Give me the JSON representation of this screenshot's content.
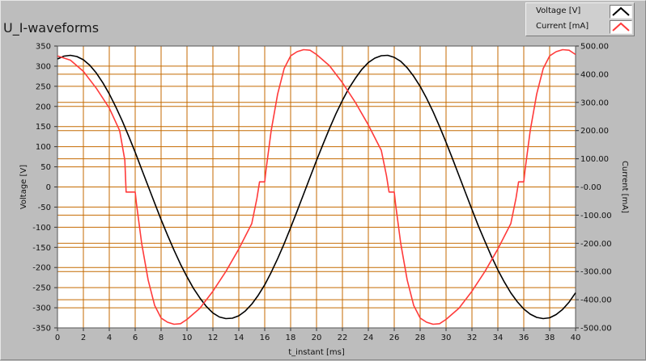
{
  "chart_data": {
    "type": "line",
    "title": "U_I-waveforms",
    "xlabel": "t_instant [ms]",
    "ylabel_left": "Voltage [V]",
    "ylabel_right": "Current [mA]",
    "xlim": [
      0,
      40
    ],
    "ylim_left": [
      -350,
      350
    ],
    "ylim_right": [
      -500,
      500
    ],
    "grid": true,
    "legend_position": "top-right",
    "x_ticks": [
      "0",
      "2",
      "4",
      "6",
      "8",
      "10",
      "12",
      "14",
      "16",
      "18",
      "20",
      "22",
      "24",
      "26",
      "28",
      "30",
      "32",
      "34",
      "36",
      "38",
      "40"
    ],
    "y_left_ticks": [
      "350",
      "300",
      "250",
      "200",
      "150",
      "100",
      "50",
      "0",
      "-50",
      "-100",
      "-150",
      "-200",
      "-250",
      "-300",
      "-350"
    ],
    "y_right_ticks": [
      "500.00",
      "400.00",
      "300.00",
      "200.00",
      "100.00",
      "-0.00",
      "-100.00",
      "-200.00",
      "-300.00",
      "-400.00",
      "-500.00"
    ],
    "series": [
      {
        "name": "Voltage [V]",
        "axis": "left",
        "color": "#000000",
        "points": [
          [
            0,
            318
          ],
          [
            0.5,
            325
          ],
          [
            1,
            327
          ],
          [
            1.5,
            324
          ],
          [
            2,
            316
          ],
          [
            2.5,
            302
          ],
          [
            3,
            283
          ],
          [
            3.5,
            259
          ],
          [
            4,
            231
          ],
          [
            4.5,
            199
          ],
          [
            5,
            164
          ],
          [
            5.5,
            126
          ],
          [
            6,
            86
          ],
          [
            6.5,
            44
          ],
          [
            7,
            2
          ],
          [
            7.5,
            -40
          ],
          [
            8,
            -81
          ],
          [
            8.5,
            -120
          ],
          [
            9,
            -157
          ],
          [
            9.5,
            -192
          ],
          [
            10,
            -223
          ],
          [
            10.5,
            -252
          ],
          [
            11,
            -276
          ],
          [
            11.5,
            -297
          ],
          [
            12,
            -313
          ],
          [
            12.5,
            -323
          ],
          [
            13,
            -327
          ],
          [
            13.5,
            -326
          ],
          [
            14,
            -320
          ],
          [
            14.5,
            -308
          ],
          [
            15,
            -291
          ],
          [
            15.5,
            -269
          ],
          [
            16,
            -243
          ],
          [
            16.5,
            -212
          ],
          [
            17,
            -178
          ],
          [
            17.5,
            -141
          ],
          [
            18,
            -101
          ],
          [
            18.5,
            -60
          ],
          [
            19,
            -18
          ],
          [
            19.5,
            24
          ],
          [
            20,
            66
          ],
          [
            20.5,
            106
          ],
          [
            21,
            145
          ],
          [
            21.5,
            182
          ],
          [
            22,
            215
          ],
          [
            22.5,
            245
          ],
          [
            23,
            270
          ],
          [
            23.5,
            292
          ],
          [
            24,
            309
          ],
          [
            24.5,
            320
          ],
          [
            25,
            326
          ],
          [
            25.5,
            327
          ],
          [
            26,
            322
          ],
          [
            26.5,
            312
          ],
          [
            27,
            296
          ],
          [
            27.5,
            275
          ],
          [
            28,
            250
          ],
          [
            28.5,
            220
          ],
          [
            29,
            187
          ],
          [
            29.5,
            150
          ],
          [
            30,
            111
          ],
          [
            30.5,
            70
          ],
          [
            31,
            28
          ],
          [
            31.5,
            -14
          ],
          [
            32,
            -56
          ],
          [
            32.5,
            -97
          ],
          [
            33,
            -135
          ],
          [
            33.5,
            -172
          ],
          [
            34,
            -206
          ],
          [
            34.5,
            -236
          ],
          [
            35,
            -263
          ],
          [
            35.5,
            -285
          ],
          [
            36,
            -303
          ],
          [
            36.5,
            -316
          ],
          [
            37,
            -324
          ],
          [
            37.5,
            -327
          ],
          [
            38,
            -325
          ],
          [
            38.5,
            -317
          ],
          [
            39,
            -304
          ],
          [
            39.5,
            -286
          ],
          [
            40,
            -263
          ]
        ]
      },
      {
        "name": "Current [mA]",
        "axis": "right",
        "color": "#ff3b3b",
        "points": [
          [
            0,
            465
          ],
          [
            1,
            450
          ],
          [
            2,
            410
          ],
          [
            3,
            350
          ],
          [
            4,
            280
          ],
          [
            4.8,
            200
          ],
          [
            5.2,
            95
          ],
          [
            5.3,
            -18
          ],
          [
            6,
            -18
          ],
          [
            6.1,
            -60
          ],
          [
            6.5,
            -200
          ],
          [
            7,
            -330
          ],
          [
            7.5,
            -420
          ],
          [
            8,
            -465
          ],
          [
            8.5,
            -480
          ],
          [
            9,
            -487
          ],
          [
            9.5,
            -485
          ],
          [
            10,
            -470
          ],
          [
            11,
            -430
          ],
          [
            12,
            -370
          ],
          [
            13,
            -300
          ],
          [
            14,
            -220
          ],
          [
            15,
            -130
          ],
          [
            15.4,
            -40
          ],
          [
            15.6,
            18
          ],
          [
            16,
            18
          ],
          [
            16.1,
            60
          ],
          [
            16.5,
            200
          ],
          [
            17,
            330
          ],
          [
            17.5,
            420
          ],
          [
            18,
            465
          ],
          [
            18.5,
            480
          ],
          [
            19,
            487
          ],
          [
            19.5,
            485
          ],
          [
            20,
            470
          ],
          [
            21,
            430
          ],
          [
            22,
            370
          ],
          [
            23,
            300
          ],
          [
            24,
            220
          ],
          [
            25,
            130
          ],
          [
            25.4,
            40
          ],
          [
            25.6,
            -18
          ],
          [
            26,
            -18
          ],
          [
            26.1,
            -60
          ],
          [
            26.5,
            -200
          ],
          [
            27,
            -330
          ],
          [
            27.5,
            -420
          ],
          [
            28,
            -465
          ],
          [
            28.5,
            -480
          ],
          [
            29,
            -487
          ],
          [
            29.5,
            -485
          ],
          [
            30,
            -470
          ],
          [
            31,
            -430
          ],
          [
            32,
            -370
          ],
          [
            33,
            -300
          ],
          [
            34,
            -220
          ],
          [
            35,
            -130
          ],
          [
            35.4,
            -40
          ],
          [
            35.6,
            18
          ],
          [
            36,
            18
          ],
          [
            36.1,
            60
          ],
          [
            36.5,
            200
          ],
          [
            37,
            330
          ],
          [
            37.5,
            420
          ],
          [
            38,
            465
          ],
          [
            38.5,
            480
          ],
          [
            39,
            487
          ],
          [
            39.5,
            485
          ],
          [
            40,
            470
          ]
        ]
      }
    ]
  },
  "legend": {
    "items": [
      {
        "label": "Voltage [V]",
        "color": "#000000"
      },
      {
        "label": "Current [mA]",
        "color": "#ff3b3b"
      }
    ]
  },
  "colors": {
    "plot_background": "#ffffff",
    "grid": "#c46a00",
    "panel": "#bdbdbd"
  }
}
